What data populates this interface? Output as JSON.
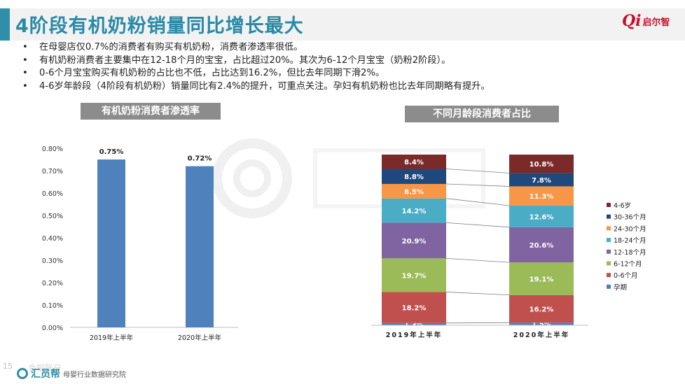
{
  "title": "4阶段有机奶粉销量同比增长最大",
  "logo": {
    "mark": "Qi",
    "text": "启尔智"
  },
  "bullets": [
    "在母婴店仅0.7%的消费者有购买有机奶粉，消费者渗透率很低。",
    "有机奶粉消费者主要集中在12-18个月的宝宝，占比超过20%。其次为6-12个月宝宝（奶粉2阶段）。",
    "0-6个月宝宝购买有机奶粉的占比也不低，占比达到16.2%，但比去年同期下滑2%。",
    "4-6岁年龄段（4阶段有机奶粉）销量同比有2.4%的提升，可重点关注。孕妇有机奶粉也比去年同期略有提升。"
  ],
  "footer": {
    "page": "15",
    "faded_label": "合规账户",
    "brand": "汇员帮",
    "org": "母婴行业数据研究院"
  },
  "colors": {
    "accent": "#2a8aa6",
    "bar_blue": "#4f81bd"
  },
  "chart_data": [
    {
      "type": "bar",
      "title": "有机奶粉消费者渗透率",
      "categories": [
        "2019年上半年",
        "2020年上半年"
      ],
      "values": [
        0.75,
        0.72
      ],
      "value_labels": [
        "0.75%",
        "0.72%"
      ],
      "ylim": [
        0,
        0.8
      ],
      "yticks": [
        "0.00%",
        "0.10%",
        "0.20%",
        "0.30%",
        "0.40%",
        "0.50%",
        "0.60%",
        "0.70%",
        "0.80%"
      ],
      "grid": false
    },
    {
      "type": "bar",
      "stacked": true,
      "title": "不同月龄段消费者占比",
      "categories": [
        "2019年上半年",
        "2020年上半年"
      ],
      "legend_position": "right",
      "series": [
        {
          "name": "孕期",
          "color": "#4f81bd",
          "values": [
            1.3,
            1.5
          ]
        },
        {
          "name": "0-6个月",
          "color": "#c0504d",
          "values": [
            18.2,
            16.2
          ]
        },
        {
          "name": "6-12个月",
          "color": "#9bbb59",
          "values": [
            19.7,
            19.1
          ]
        },
        {
          "name": "12-18个月",
          "color": "#8064a2",
          "values": [
            20.9,
            20.6
          ]
        },
        {
          "name": "18-24个月",
          "color": "#4bacc6",
          "values": [
            14.2,
            12.6
          ]
        },
        {
          "name": "24-30个月",
          "color": "#f79646",
          "values": [
            8.5,
            11.3
          ]
        },
        {
          "name": "30-36个月",
          "color": "#1f497d",
          "values": [
            8.8,
            7.8
          ]
        },
        {
          "name": "4-6岁",
          "color": "#7b2a2a",
          "values": [
            8.4,
            10.8
          ]
        }
      ]
    }
  ]
}
